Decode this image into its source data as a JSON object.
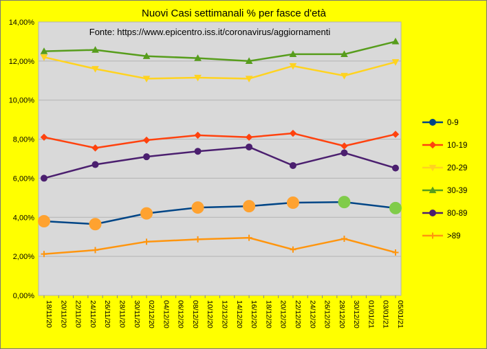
{
  "chart_data": {
    "type": "line",
    "title": "Nuovi Casi settimanali % per fasce d'età",
    "subtitle": "Fonte: https://www.epicentro.iss.it/coronavirus/aggiornamenti",
    "xlabel": "",
    "ylabel": "",
    "ylim": [
      0,
      14
    ],
    "yticks": [
      "0,00%",
      "2,00%",
      "4,00%",
      "6,00%",
      "8,00%",
      "10,00%",
      "12,00%",
      "14,00%"
    ],
    "x_tick_labels": [
      "18/11/20",
      "20/11/20",
      "22/11/20",
      "24/11/20",
      "26/11/20",
      "28/11/20",
      "30/11/20",
      "02/12/20",
      "04/12/20",
      "06/12/20",
      "08/12/20",
      "10/12/20",
      "12/12/20",
      "14/12/20",
      "16/12/20",
      "18/12/20",
      "20/12/20",
      "22/12/20",
      "24/12/20",
      "26/12/20",
      "28/12/20",
      "30/12/20",
      "01/01/21",
      "03/01/21",
      "05/01/21"
    ],
    "x": [
      "18/11/20",
      "25/11/20",
      "02/12/20",
      "09/12/20",
      "16/12/20",
      "22/12/20",
      "29/12/20",
      "05/01/21"
    ],
    "x_index": [
      0,
      3.5,
      7,
      10.5,
      14,
      17,
      20.5,
      24
    ],
    "grid": true,
    "legend_position": "right",
    "series": [
      {
        "name": "0-9",
        "color": "#004586",
        "marker": "circle",
        "values": [
          3.8,
          3.65,
          4.2,
          4.5,
          4.57,
          4.75,
          4.78,
          4.47
        ]
      },
      {
        "name": "10-19",
        "color": "#ff420e",
        "marker": "diamond",
        "values": [
          8.1,
          7.55,
          7.95,
          8.2,
          8.1,
          8.3,
          7.65,
          8.25
        ]
      },
      {
        "name": "20-29",
        "color": "#ffd320",
        "marker": "triangle-down",
        "values": [
          12.2,
          11.6,
          11.1,
          11.15,
          11.1,
          11.75,
          11.25,
          11.95
        ]
      },
      {
        "name": "30-39",
        "color": "#579d1c",
        "marker": "triangle",
        "values": [
          12.5,
          12.57,
          12.25,
          12.15,
          12.0,
          12.35,
          12.35,
          13.0
        ]
      },
      {
        "name": "80-89",
        "color": "#4b1f6f",
        "marker": "circle",
        "values": [
          6.0,
          6.7,
          7.1,
          7.38,
          7.6,
          6.65,
          7.3,
          6.52
        ]
      },
      {
        "name": ">89",
        "color": "#ff950e",
        "marker": "plus",
        "values": [
          2.12,
          2.32,
          2.75,
          2.87,
          2.95,
          2.35,
          2.9,
          2.2
        ]
      }
    ],
    "point_overlays": {
      "series": "0-9",
      "colors": [
        "#ffa230",
        "#ffa230",
        "#ffa230",
        "#ffa230",
        "#ffa230",
        "#ffa230",
        "#80cc4a",
        "#80cc4a"
      ]
    }
  }
}
